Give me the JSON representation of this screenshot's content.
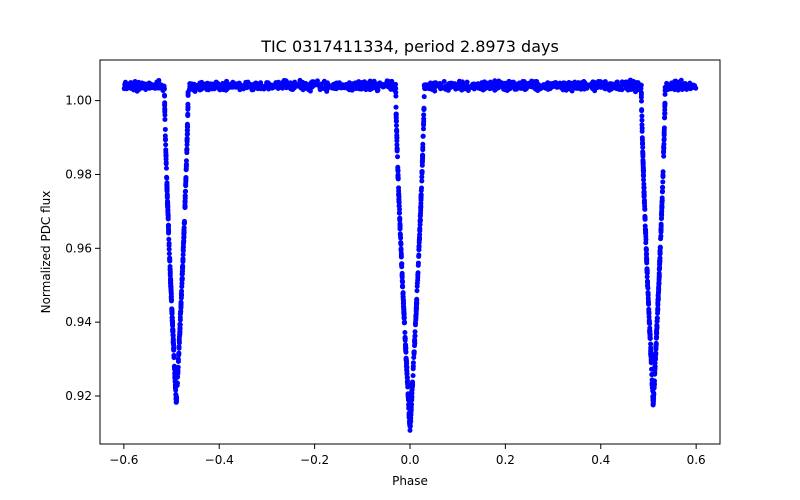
{
  "chart_data": {
    "type": "scatter",
    "title": "TIC 0317411334, period 2.8973 days",
    "xlabel": "Phase",
    "ylabel": "Normalized PDC flux",
    "xlim": [
      -0.65,
      0.65
    ],
    "ylim": [
      0.907,
      1.011
    ],
    "xticks": [
      -0.6,
      -0.4,
      -0.2,
      0.0,
      0.2,
      0.4,
      0.6
    ],
    "xtick_labels": [
      "−0.6",
      "−0.4",
      "−0.2",
      "0.0",
      "0.2",
      "0.4",
      "0.6"
    ],
    "yticks": [
      0.92,
      0.94,
      0.96,
      0.98,
      1.0
    ],
    "ytick_labels": [
      "0.92",
      "0.94",
      "0.96",
      "0.98",
      "1.00"
    ],
    "grid": false,
    "marker_color": "#0000ff",
    "series": [
      {
        "name": "PDC flux",
        "phase_range": [
          -0.6,
          0.6
        ],
        "baseline_flux": 1.004,
        "eclipses": [
          {
            "center_phase": -0.49,
            "min_flux": 0.918,
            "half_width_phase": 0.025
          },
          {
            "center_phase": 0.0,
            "min_flux": 0.911,
            "half_width_phase": 0.03
          },
          {
            "center_phase": 0.51,
            "min_flux": 0.918,
            "half_width_phase": 0.025
          }
        ]
      }
    ]
  }
}
